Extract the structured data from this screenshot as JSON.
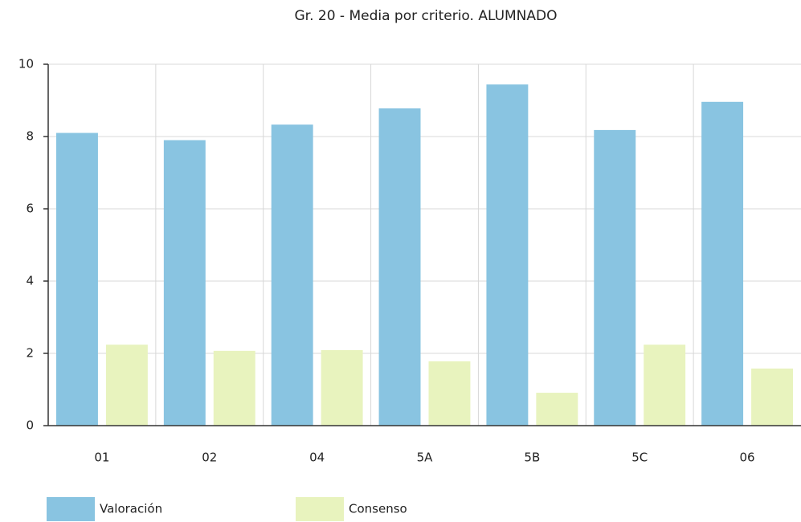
{
  "chart_data": {
    "type": "bar",
    "title": "Gr. 20 - Media por criterio. ALUMNADO",
    "categories": [
      "01",
      "02",
      "04",
      "5A",
      "5B",
      "5C",
      "06"
    ],
    "series": [
      {
        "name": "Valoración",
        "color": "#89c4e1",
        "values": [
          8.1,
          7.9,
          8.33,
          8.78,
          9.44,
          8.18,
          8.96
        ]
      },
      {
        "name": "Consenso",
        "color": "#e8f3be",
        "values": [
          2.24,
          2.07,
          2.09,
          1.78,
          0.91,
          2.24,
          1.58
        ]
      }
    ],
    "ylim": [
      0,
      10
    ],
    "yticks": [
      0,
      2,
      4,
      6,
      8,
      10
    ],
    "grid": true,
    "legend": "bottom"
  }
}
